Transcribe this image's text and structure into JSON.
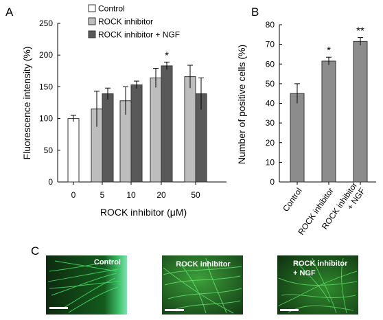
{
  "panels": {
    "a_label": "A",
    "b_label": "B",
    "c_label": "C"
  },
  "chart_data": [
    {
      "type": "bar",
      "panel": "A",
      "ylabel": "Fluorescence intensity (%)",
      "xlabel": "ROCK inhibitor (μM)",
      "ylim": [
        0,
        250
      ],
      "yticks": [
        0,
        50,
        100,
        150,
        200,
        250
      ],
      "tick_labels": [
        "0",
        "5",
        "10",
        "20",
        "50"
      ],
      "legend_position": "top-left",
      "groups": [
        {
          "label": "0",
          "bars": [
            {
              "series": 0,
              "value": 100,
              "err": 5
            }
          ]
        },
        {
          "label": "5",
          "bars": [
            {
              "series": 1,
              "value": 115,
              "err": 28
            },
            {
              "series": 2,
              "value": 139,
              "err": 9
            }
          ]
        },
        {
          "label": "10",
          "bars": [
            {
              "series": 1,
              "value": 128,
              "err": 22
            },
            {
              "series": 2,
              "value": 153,
              "err": 6
            }
          ]
        },
        {
          "label": "20",
          "bars": [
            {
              "series": 1,
              "value": 164,
              "err": 15
            },
            {
              "series": 2,
              "value": 183,
              "err": 6,
              "annotation": "*"
            }
          ]
        },
        {
          "label": "50",
          "bars": [
            {
              "series": 1,
              "value": 166,
              "err": 18
            },
            {
              "series": 2,
              "value": 139,
              "err": 25
            }
          ]
        }
      ],
      "series": [
        {
          "name": "Control",
          "color": "#ffffff"
        },
        {
          "name": "ROCK inhibitor",
          "color": "#bdbdbd"
        },
        {
          "name": "ROCK inhibitor + NGF",
          "color": "#595959"
        }
      ]
    },
    {
      "type": "bar",
      "panel": "B",
      "ylabel": "Number of positive cells (%)",
      "ylim": [
        0,
        80
      ],
      "yticks": [
        0,
        10,
        20,
        30,
        40,
        50,
        60,
        70,
        80
      ],
      "color": "#8c8c8c",
      "categories": [
        "Control",
        "ROCK inhibitor",
        "ROCK inhibitor + NGF"
      ],
      "category_lines": [
        [
          "Control"
        ],
        [
          "ROCK inhibitor"
        ],
        [
          "ROCK inhibitor",
          "+ NGF"
        ]
      ],
      "values": [
        45,
        61.5,
        71.5
      ],
      "errors": [
        5,
        2,
        2
      ],
      "annotations": [
        "",
        "*",
        "**"
      ]
    }
  ],
  "micrographs": [
    {
      "caption": "Control"
    },
    {
      "caption": "ROCK inhibitor"
    },
    {
      "caption_lines": [
        "ROCK inhibitor",
        "+ NGF"
      ]
    }
  ]
}
